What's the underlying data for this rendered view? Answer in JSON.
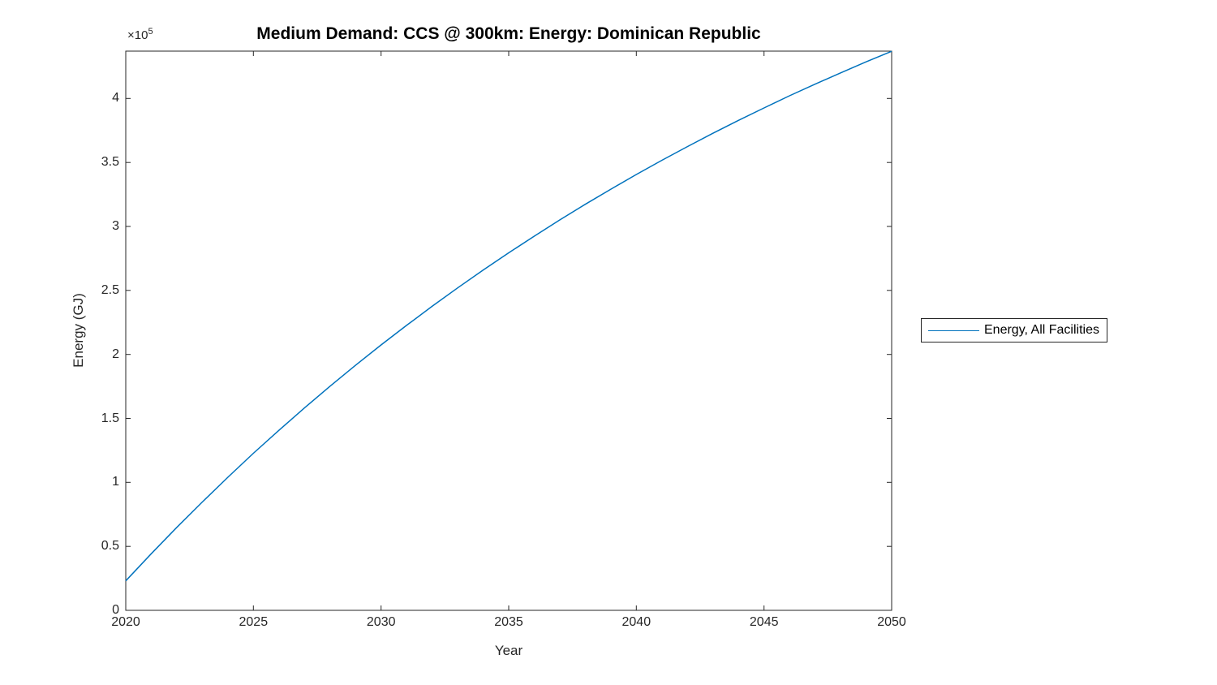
{
  "title": "Medium Demand: CCS @ 300km: Energy: Dominican Republic",
  "axis": {
    "xlabel": "Year",
    "ylabel": "Energy (GJ)",
    "y_multiplier_base": "×10",
    "y_multiplier_exp": "5"
  },
  "legend": {
    "entries": [
      {
        "label": "Energy, All Facilities",
        "color": "#0072BD"
      }
    ]
  },
  "colors": {
    "line": "#0072BD",
    "axis": "#262626",
    "background": "#ffffff"
  },
  "chart_data": {
    "type": "line",
    "title": "Medium Demand: CCS @ 300km: Energy: Dominican Republic",
    "xlabel": "Year",
    "ylabel": "Energy (GJ)",
    "xlim": [
      2020,
      2050
    ],
    "ylim": [
      0,
      437000
    ],
    "xticks": [
      2020,
      2025,
      2030,
      2035,
      2040,
      2045,
      2050
    ],
    "yticks": [
      0,
      50000,
      100000,
      150000,
      200000,
      250000,
      300000,
      350000,
      400000
    ],
    "ytick_labels": [
      "0",
      "0.5",
      "1",
      "1.5",
      "2",
      "2.5",
      "3",
      "3.5",
      "4"
    ],
    "y_axis_multiplier": "1e5",
    "grid": false,
    "box": true,
    "legend_position": "right-outside",
    "series": [
      {
        "name": "Energy, All Facilities",
        "color": "#0072BD",
        "x": [
          2020,
          2021,
          2022,
          2023,
          2024,
          2025,
          2026,
          2027,
          2028,
          2029,
          2030,
          2031,
          2032,
          2033,
          2034,
          2035,
          2036,
          2037,
          2038,
          2039,
          2040,
          2041,
          2042,
          2043,
          2044,
          2045,
          2046,
          2047,
          2048,
          2049,
          2050
        ],
        "y": [
          23000,
          44300,
          64800,
          84700,
          104000,
          122700,
          140700,
          158200,
          175100,
          191500,
          207400,
          222700,
          237600,
          252000,
          265900,
          279400,
          292400,
          305100,
          317300,
          329100,
          340600,
          351700,
          362400,
          372800,
          382900,
          392600,
          402100,
          411200,
          420000,
          428600,
          436900
        ]
      }
    ]
  }
}
